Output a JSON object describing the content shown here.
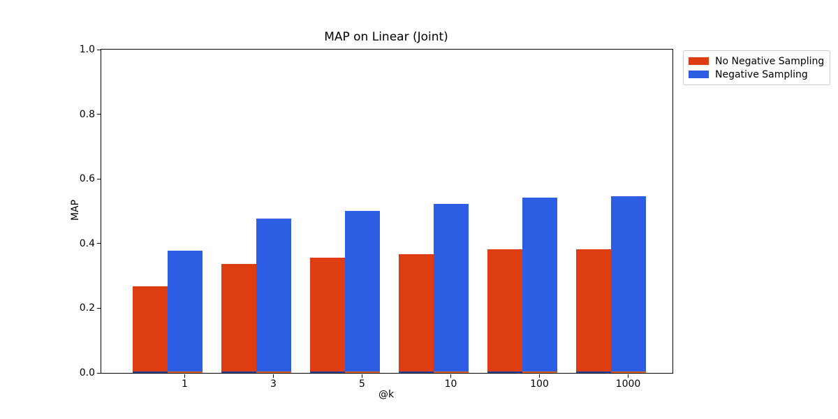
{
  "chart_data": {
    "type": "bar",
    "title": "MAP on Linear (Joint)",
    "xlabel": "@k",
    "ylabel": "MAP",
    "categories": [
      "1",
      "3",
      "5",
      "10",
      "100",
      "1000"
    ],
    "series": [
      {
        "name": "No Negative Sampling",
        "color": "#de3d12",
        "values": [
          0.267,
          0.337,
          0.356,
          0.367,
          0.383,
          0.383
        ]
      },
      {
        "name": "Negative Sampling",
        "color": "#2d5de2",
        "values": [
          0.377,
          0.477,
          0.502,
          0.523,
          0.543,
          0.546
        ]
      }
    ],
    "baseline_stubs": {
      "value": 0.005,
      "colors": [
        "#24449c",
        "#e2641f"
      ],
      "note": "thin opposite-color stubs visible at the base of each bar slot"
    },
    "ylim": [
      0.0,
      1.0
    ],
    "yticks": [
      0.0,
      0.2,
      0.4,
      0.6,
      0.8,
      1.0
    ],
    "ytick_labels": [
      "0.0",
      "0.2",
      "0.4",
      "0.6",
      "0.8",
      "1.0"
    ],
    "grid": false,
    "legend_position": "outside-top-right",
    "plot_background": "#ffffff"
  }
}
